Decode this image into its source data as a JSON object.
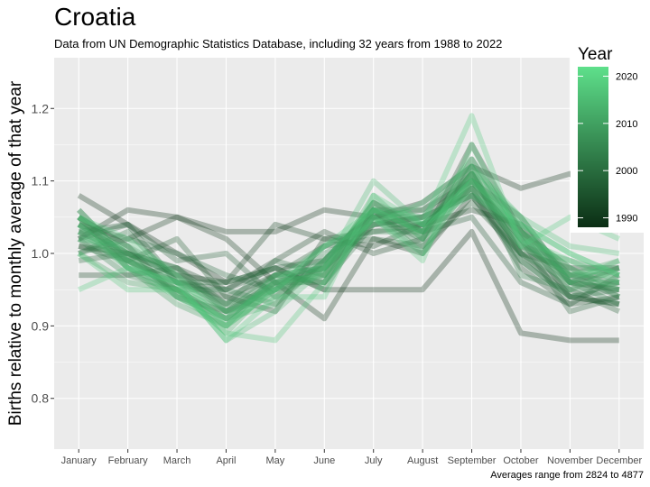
{
  "chart_data": {
    "type": "line",
    "title": "Croatia",
    "subtitle": "Data from UN Demographic Statistics Database, including 32 years from 1988 to 2022",
    "ylabel": "Births relative to monthly average of that year",
    "xlabel": "",
    "caption": "Averages range from 2824 to 4877",
    "categories": [
      "January",
      "February",
      "March",
      "April",
      "May",
      "June",
      "July",
      "August",
      "September",
      "October",
      "November",
      "December"
    ],
    "ylim": [
      0.73,
      1.27
    ],
    "yticks": [
      0.8,
      0.9,
      1.0,
      1.1,
      1.2
    ],
    "ytick_labels": [
      "0.8",
      "0.9",
      "1.0",
      "1.1",
      "1.2"
    ],
    "grid": true,
    "legend": {
      "title": "Year",
      "placement": "right",
      "range": [
        1988,
        2022
      ],
      "ticks": [
        1990,
        2000,
        2010,
        2020
      ],
      "tick_labels": [
        "1990",
        "2000",
        "2010",
        "2020"
      ],
      "color_low": "#0b2e14",
      "color_high": "#5ee08b"
    },
    "series": [
      {
        "year": 1988,
        "values": [
          1.08,
          1.04,
          1.0,
          0.96,
          0.98,
          0.95,
          0.95,
          0.95,
          1.03,
          0.89,
          0.88,
          0.88
        ]
      },
      {
        "year": 1989,
        "values": [
          1.02,
          1.06,
          1.05,
          1.03,
          1.03,
          1.06,
          1.05,
          1.07,
          1.12,
          1.09,
          1.11,
          1.06
        ]
      },
      {
        "year": 1990,
        "values": [
          1.04,
          1.02,
          1.05,
          1.02,
          0.96,
          0.91,
          1.02,
          1.0,
          1.08,
          1.0,
          0.98,
          0.98
        ]
      },
      {
        "year": 1991,
        "values": [
          1.01,
          1.0,
          0.97,
          0.96,
          1.04,
          1.02,
          1.01,
          1.04,
          1.06,
          1.04,
          0.96,
          0.95
        ]
      },
      {
        "year": 1992,
        "values": [
          0.97,
          0.97,
          0.98,
          0.95,
          0.99,
          1.03,
          1.0,
          1.02,
          1.15,
          1.03,
          0.94,
          0.93
        ]
      },
      {
        "year": 1993,
        "values": [
          1.06,
          0.99,
          0.96,
          0.94,
          0.92,
          1.02,
          1.03,
          1.04,
          1.09,
          0.98,
          0.93,
          0.94
        ]
      },
      {
        "year": 1994,
        "values": [
          1.05,
          1.01,
          0.94,
          0.92,
          0.96,
          0.98,
          1.04,
          1.05,
          1.1,
          1.05,
          0.96,
          0.98
        ]
      },
      {
        "year": 1995,
        "values": [
          1.03,
          1.04,
          0.96,
          0.95,
          0.98,
          0.99,
          1.06,
          1.03,
          1.05,
          0.96,
          0.93,
          0.97
        ]
      },
      {
        "year": 1996,
        "values": [
          1.01,
          0.99,
          1.02,
          0.94,
          0.97,
          1.01,
          1.02,
          1.01,
          1.07,
          1.0,
          0.95,
          0.92
        ]
      },
      {
        "year": 1997,
        "values": [
          1.02,
          1.04,
          0.99,
          1.0,
          0.94,
          0.99,
          1.05,
          1.06,
          1.1,
          1.02,
          0.92,
          0.94
        ]
      },
      {
        "year": 1998,
        "values": [
          0.99,
          1.0,
          0.98,
          0.93,
          0.97,
          0.98,
          1.07,
          1.03,
          1.11,
          1.0,
          0.94,
          0.93
        ]
      },
      {
        "year": 1999,
        "values": [
          1.0,
          1.02,
          1.0,
          0.97,
          0.95,
          1.01,
          1.04,
          1.05,
          1.08,
          0.99,
          0.94,
          0.95
        ]
      },
      {
        "year": 2000,
        "values": [
          1.03,
          1.0,
          0.97,
          0.93,
          0.99,
          0.97,
          1.05,
          1.02,
          1.13,
          1.03,
          0.97,
          0.94
        ]
      },
      {
        "year": 2001,
        "values": [
          1.05,
          0.98,
          0.95,
          0.91,
          0.96,
          0.96,
          1.04,
          1.04,
          1.09,
          1.01,
          0.97,
          0.96
        ]
      },
      {
        "year": 2002,
        "values": [
          1.0,
          1.03,
          0.96,
          0.96,
          0.98,
          0.95,
          1.06,
          1.06,
          1.11,
          0.99,
          0.94,
          0.96
        ]
      },
      {
        "year": 2003,
        "values": [
          1.04,
          1.0,
          0.98,
          0.92,
          0.95,
          1.0,
          1.03,
          1.03,
          1.1,
          1.02,
          0.96,
          0.93
        ]
      },
      {
        "year": 2004,
        "values": [
          1.02,
          0.97,
          0.95,
          0.95,
          0.93,
          0.99,
          1.06,
          1.01,
          1.12,
          0.97,
          0.95,
          0.96
        ]
      },
      {
        "year": 2005,
        "values": [
          1.05,
          1.01,
          0.97,
          0.92,
          0.97,
          0.96,
          1.05,
          1.05,
          1.08,
          1.03,
          0.98,
          0.94
        ]
      },
      {
        "year": 2006,
        "values": [
          1.02,
          0.99,
          0.95,
          0.9,
          0.97,
          0.96,
          1.06,
          1.03,
          1.11,
          1.0,
          0.96,
          0.95
        ]
      },
      {
        "year": 2007,
        "values": [
          1.04,
          1.0,
          0.94,
          0.91,
          0.96,
          0.97,
          1.07,
          1.04,
          1.09,
          1.01,
          0.99,
          0.97
        ]
      },
      {
        "year": 2008,
        "values": [
          1.03,
          0.99,
          0.96,
          0.93,
          0.95,
          0.98,
          1.05,
          1.03,
          1.12,
          1.02,
          0.95,
          0.98
        ]
      },
      {
        "year": 2009,
        "values": [
          1.05,
          0.98,
          0.93,
          0.9,
          0.95,
          0.97,
          1.06,
          1.0,
          1.1,
          1.04,
          0.97,
          0.97
        ]
      },
      {
        "year": 2010,
        "values": [
          1.0,
          0.96,
          0.95,
          0.92,
          0.94,
          0.98,
          1.07,
          1.02,
          1.11,
          1.01,
          0.97,
          0.99
        ]
      },
      {
        "year": 2011,
        "values": [
          1.04,
          0.99,
          0.95,
          0.91,
          0.93,
          0.99,
          1.06,
          1.04,
          1.1,
          1.03,
          0.96,
          0.96
        ]
      },
      {
        "year": 2012,
        "values": [
          1.05,
          1.0,
          0.95,
          0.89,
          0.96,
          0.97,
          1.08,
          1.02,
          1.09,
          1.03,
          0.98,
          0.95
        ]
      },
      {
        "year": 2013,
        "values": [
          1.03,
          0.98,
          0.96,
          0.92,
          0.95,
          0.99,
          1.06,
          1.05,
          1.13,
          1.02,
          0.97,
          0.98
        ]
      },
      {
        "year": 2014,
        "values": [
          1.06,
          0.99,
          0.94,
          0.9,
          0.97,
          0.98,
          1.05,
          1.0,
          1.11,
          1.05,
          0.96,
          0.99
        ]
      },
      {
        "year": 2015,
        "values": [
          1.02,
          1.01,
          0.96,
          0.88,
          0.92,
          0.98,
          1.1,
          1.04,
          1.08,
          1.04,
          1.0,
          0.97
        ]
      },
      {
        "year": 2016,
        "values": [
          1.04,
          0.98,
          0.94,
          0.91,
          0.96,
          1.01,
          1.04,
          1.07,
          1.12,
          1.05,
          1.01,
          1.0
        ]
      },
      {
        "year": 2017,
        "values": [
          1.0,
          0.95,
          0.95,
          0.89,
          0.88,
          0.96,
          1.05,
          0.99,
          1.15,
          1.02,
          0.99,
          0.96
        ]
      },
      {
        "year": 2018,
        "values": [
          0.95,
          0.98,
          0.96,
          0.88,
          0.94,
          0.94,
          1.08,
          1.04,
          1.19,
          1.01,
          1.05,
          1.02
        ]
      },
      {
        "year": 2019,
        "values": [
          1.05,
          1.02,
          0.97,
          0.9,
          0.95,
          1.01,
          1.06,
          1.03,
          1.1,
          1.04,
          1.0,
          0.97
        ]
      }
    ]
  }
}
